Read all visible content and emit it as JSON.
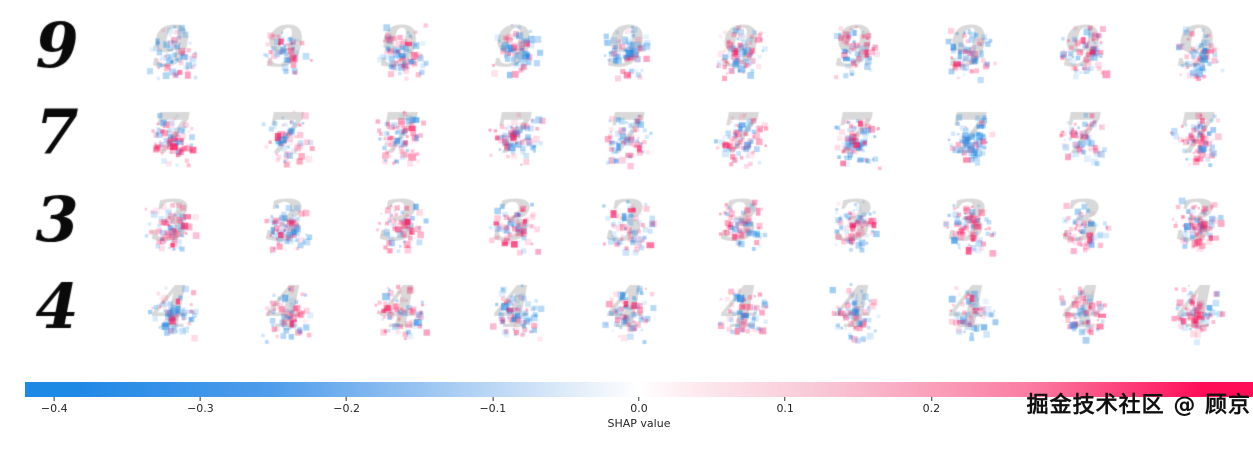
{
  "chart_data": {
    "type": "heatmap",
    "title": "",
    "description": "Grid of SHAP value explanation images for MNIST digit classification: each row shows an input handwritten digit (black, left column) followed by 10 per-class SHAP attribution images where blue pixels indicate negative SHAP values and red/pink pixels indicate positive SHAP values.",
    "row_digits": [
      "9",
      "7",
      "3",
      "4"
    ],
    "num_explanation_columns": 10,
    "input_digit_color": "#0a0a0a",
    "faint_digit_color": "#8a8a8a",
    "colorbar": {
      "label": "SHAP value",
      "ticks": [
        -0.4,
        -0.3,
        -0.2,
        -0.1,
        0.0,
        0.1,
        0.2
      ],
      "tick_labels": [
        "−0.4",
        "−0.3",
        "−0.2",
        "−0.1",
        "0.0",
        "0.1",
        "0.2"
      ],
      "range": [
        -0.42,
        0.42
      ],
      "negative_color": "#1E88E5",
      "positive_color": "#ff0d57",
      "midpoint_color": "#ffffff"
    }
  },
  "watermark": "掘金技术社区 @ 顾京"
}
